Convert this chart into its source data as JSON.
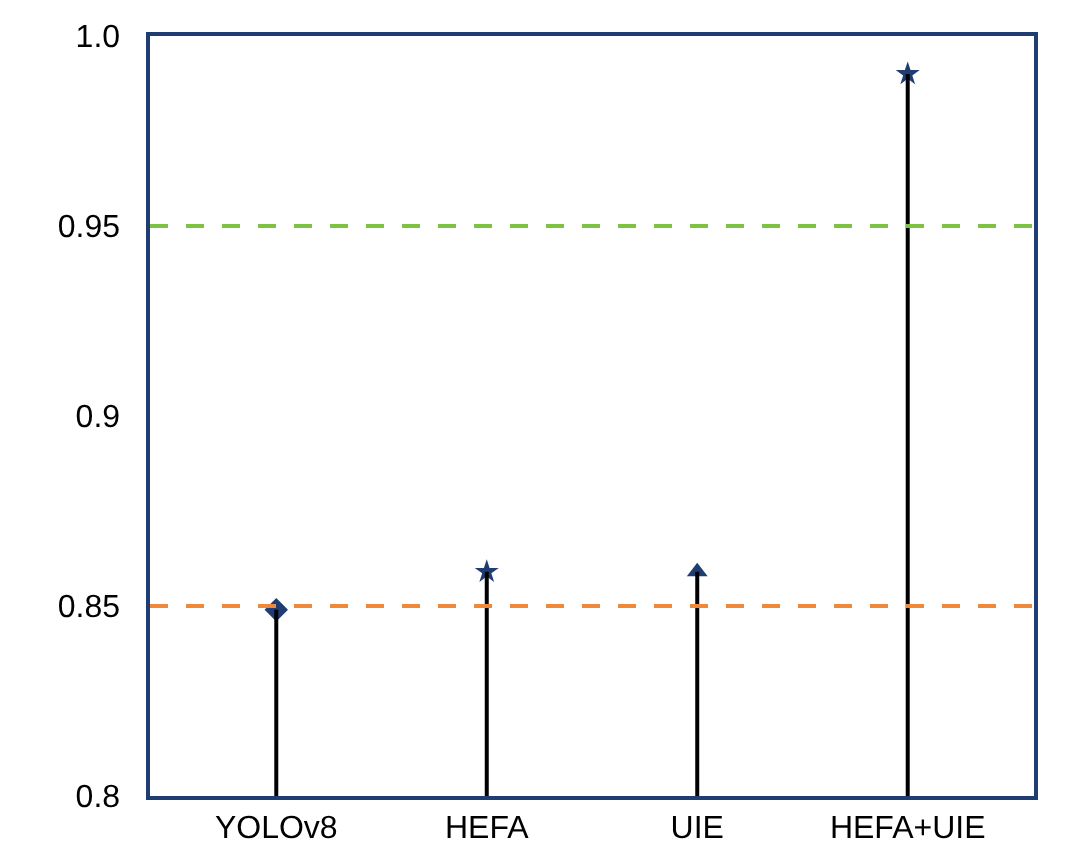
{
  "chart_data": {
    "type": "lollipop",
    "categories": [
      "YOLOv8",
      "HEFA",
      "UIE",
      "HEFA+UIE"
    ],
    "series": [
      {
        "color": "#1f3d73",
        "values": [
          0.849,
          0.859,
          0.859,
          0.99
        ]
      }
    ],
    "marker": [
      "diamond",
      "star",
      "triangle",
      "star"
    ],
    "ylim": [
      0.8,
      1.0
    ],
    "yticks": [
      0.8,
      0.85,
      0.9,
      0.95,
      {
        "value": 1.0,
        "label": "1.0"
      }
    ],
    "grid": false,
    "ref_lines": [
      {
        "axis": "y",
        "value": 0.95,
        "color": "#7dc242",
        "line_style": "dashed"
      },
      {
        "axis": "y",
        "value": 0.85,
        "color": "#f0883a",
        "line_style": "dashed"
      }
    ]
  }
}
